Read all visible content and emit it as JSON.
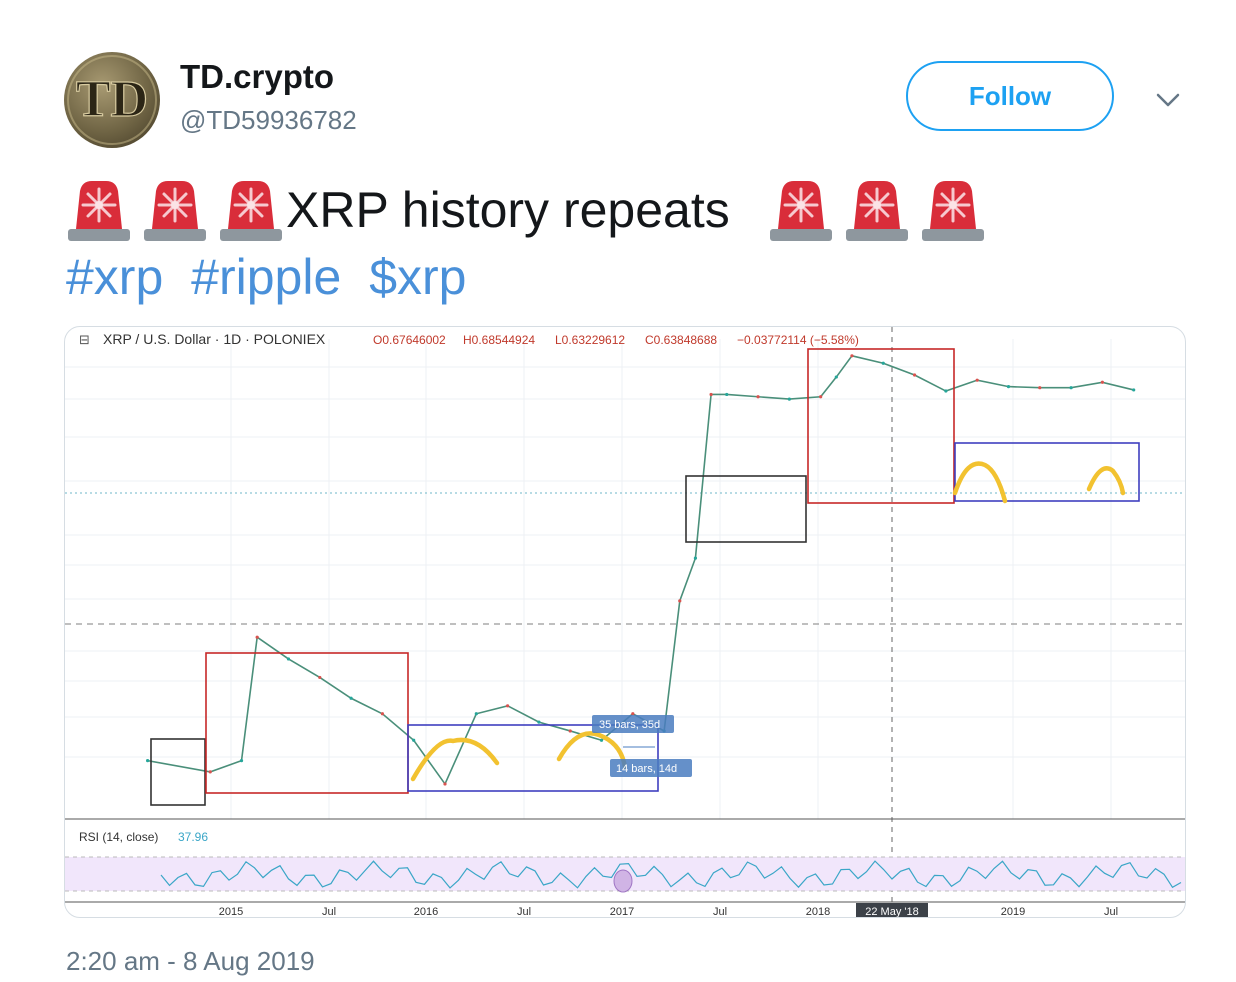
{
  "tweet": {
    "author_name": "TD.crypto",
    "author_handle": "@TD59936782",
    "avatar_text": "TD",
    "follow_label": "Follow",
    "text": "XRP history repeats",
    "hashtags": [
      "#xrp",
      "#ripple",
      "$xrp"
    ],
    "timestamp": "2:20 am - 8 Aug 2019",
    "siren_icon": "police-car-light-icon",
    "colors": {
      "accent": "#1da1f2",
      "hashtag": "#4a90d9",
      "secondary_text": "#657786"
    }
  },
  "chart_header": {
    "symbol": "XRP / U.S. Dollar · 1D · POLONIEX",
    "open": "O0.67646002",
    "high": "H0.68544924",
    "low": "L0.63229612",
    "close": "C0.63848688",
    "change": "−0.03772114 (−5.58%)"
  },
  "chart_data": {
    "type": "line",
    "title": "",
    "xlabel": "",
    "ylabel": "",
    "x_ticks": [
      "2015",
      "Jul",
      "2016",
      "Jul",
      "2017",
      "Jul",
      "2018",
      "22 May '18",
      "2019",
      "Jul"
    ],
    "series": [
      {
        "x": [
          "2014-05",
          "2014-09",
          "2014-11",
          "2014-12",
          "2015-02",
          "2015-04",
          "2015-06",
          "2015-08",
          "2015-10",
          "2015-12",
          "2016-02",
          "2016-04",
          "2016-06",
          "2016-08",
          "2016-10",
          "2016-12",
          "2017-02",
          "2017-03",
          "2017-04",
          "2017-05",
          "2017-06",
          "2017-08",
          "2017-10",
          "2017-12",
          "2018-01",
          "2018-02",
          "2018-04",
          "2018-06",
          "2018-08",
          "2018-10",
          "2018-12",
          "2019-02",
          "2019-04",
          "2019-06",
          "2019-08"
        ],
        "values": [
          0.15,
          0.14,
          0.15,
          0.32,
          0.28,
          0.25,
          0.22,
          0.2,
          0.17,
          0.13,
          0.2,
          0.21,
          0.19,
          0.18,
          0.17,
          0.2,
          0.18,
          0.4,
          0.52,
          1.42,
          1.42,
          1.4,
          1.38,
          1.4,
          1.58,
          1.8,
          1.72,
          1.6,
          1.45,
          1.55,
          1.49,
          1.48,
          1.48,
          1.53,
          1.46
        ]
      }
    ],
    "annotations": [
      "35 bars, 35d",
      "14 bars, 14d"
    ],
    "rsi": {
      "label": "RSI (14, close)",
      "value": "37.96"
    },
    "grid": true,
    "log_scale": true
  }
}
